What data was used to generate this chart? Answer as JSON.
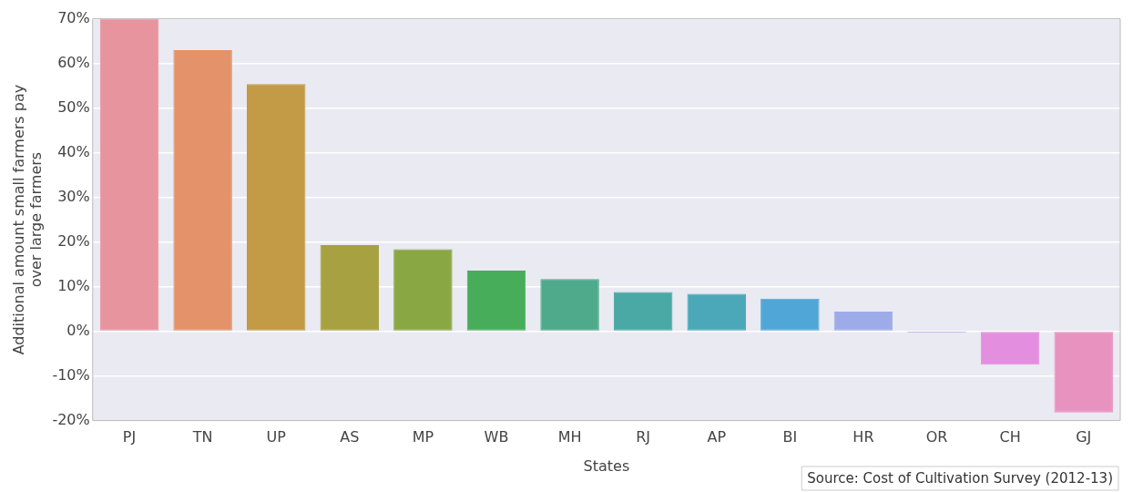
{
  "chart_data": {
    "type": "bar",
    "xlabel": "States",
    "ylabel": "Additional amount small farmers pay\nover large farmers",
    "categories": [
      "PJ",
      "TN",
      "UP",
      "AS",
      "MP",
      "WB",
      "MH",
      "RJ",
      "AP",
      "BI",
      "HR",
      "OR",
      "CH",
      "GJ"
    ],
    "values": [
      70,
      63,
      55.4,
      19.3,
      18.4,
      13.6,
      11.7,
      8.8,
      8.4,
      7.3,
      4.4,
      -0.3,
      -7.5,
      -18.2
    ],
    "colors": [
      "#e8949f",
      "#e4926a",
      "#c39a45",
      "#a7a141",
      "#89a743",
      "#47ad5a",
      "#4eaa8a",
      "#4aa8a5",
      "#4ba8b9",
      "#50a7d7",
      "#9dabe8",
      "#a88be6",
      "#e48ee0",
      "#e892c0"
    ],
    "ylim": [
      -20,
      70
    ],
    "yticks": [
      {
        "value": -20,
        "label": "-20%"
      },
      {
        "value": -10,
        "label": "-10%"
      },
      {
        "value": 0,
        "label": "0%"
      },
      {
        "value": 10,
        "label": "10%"
      },
      {
        "value": 20,
        "label": "20%"
      },
      {
        "value": 30,
        "label": "30%"
      },
      {
        "value": 40,
        "label": "40%"
      },
      {
        "value": 50,
        "label": "50%"
      },
      {
        "value": 60,
        "label": "60%"
      },
      {
        "value": 70,
        "label": "70%"
      }
    ],
    "grid": "y",
    "legend": false,
    "annotations": [
      "Source: Cost of Cultivation Survey (2012-13)"
    ]
  }
}
